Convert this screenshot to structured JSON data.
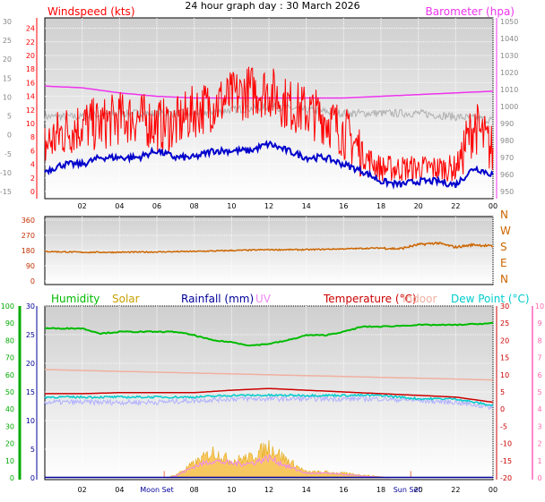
{
  "title": "24 hour graph day : 30 March 2026",
  "colors": {
    "windspeed": "#ff0000",
    "wind_avg": "#0000cc",
    "barometer": "#ee33ee",
    "gust_grey": "#b0b0b0",
    "direction": "#cc6600",
    "humidity": "#00bb00",
    "solar": "#c8a000",
    "rainfall": "#000099",
    "uv": "#ee88ee",
    "temperature": "#cc0000",
    "indoor": "#f0b0a0",
    "dewpoint": "#00cccc",
    "axis_left": "#888888",
    "axis_green": "#00aa00",
    "axis_pink": "#ee33ee"
  },
  "chart_data": [
    {
      "type": "line",
      "panel": "wind",
      "legend_left": "Windspeed (kts)",
      "legend_right": "Barometer (hpa)",
      "x_ticks": [
        "02",
        "04",
        "06",
        "08",
        "10",
        "12",
        "14",
        "16",
        "18",
        "20",
        "22",
        "00"
      ],
      "y_left_ticks": [
        0,
        2,
        4,
        6,
        8,
        10,
        12,
        14,
        16,
        18,
        20,
        22,
        24
      ],
      "y_outer_ticks": [
        -15,
        -10,
        -5,
        0,
        5,
        10,
        15,
        20,
        25,
        30
      ],
      "y_right_ticks": [
        950,
        960,
        970,
        980,
        990,
        1000,
        1010,
        1020,
        1030,
        1040,
        1050
      ],
      "ylim_left": [
        0,
        25
      ],
      "ylim_right": [
        950,
        1050
      ],
      "x_range_hours": [
        0,
        24
      ],
      "series": [
        {
          "name": "Windspeed",
          "key": "gust",
          "x": [
            0,
            1,
            2,
            3,
            4,
            5,
            6,
            7,
            8,
            9,
            10,
            11,
            12,
            13,
            14,
            15,
            16,
            17,
            18,
            19,
            20,
            21,
            22,
            23,
            24
          ],
          "values": [
            6,
            8,
            9,
            9,
            10,
            10,
            9,
            9,
            11,
            12,
            13,
            14,
            14,
            12,
            11,
            10,
            8,
            5,
            3,
            3,
            3,
            3,
            3,
            9,
            5
          ]
        },
        {
          "name": "Average",
          "key": "avg",
          "x": [
            0,
            1,
            2,
            3,
            4,
            5,
            6,
            7,
            8,
            9,
            10,
            11,
            12,
            13,
            14,
            15,
            16,
            17,
            18,
            19,
            20,
            21,
            22,
            23,
            24
          ],
          "values": [
            3,
            4,
            4,
            5,
            5,
            5,
            6,
            5,
            5,
            6,
            6,
            6,
            7,
            6,
            5,
            5,
            4,
            3,
            1.5,
            1,
            1.5,
            1.5,
            1,
            3.5,
            2.5
          ]
        },
        {
          "name": "Barometer",
          "key": "baro",
          "x": [
            0,
            2,
            4,
            6,
            8,
            10,
            12,
            14,
            16,
            18,
            20,
            22,
            24
          ],
          "values": [
            1012,
            1011,
            1008,
            1006,
            1005,
            1005,
            1005,
            1005,
            1005,
            1006,
            1007,
            1008,
            1009
          ]
        },
        {
          "name": "",
          "key": "grey",
          "x": [
            0,
            2,
            4,
            6,
            8,
            10,
            12,
            14,
            16,
            18,
            20,
            22,
            24
          ],
          "values": [
            11,
            11,
            11.5,
            11.5,
            11.5,
            12,
            12.5,
            12,
            11.5,
            11.5,
            11.5,
            11,
            10.5
          ]
        }
      ]
    },
    {
      "type": "line",
      "panel": "direction",
      "y_ticks": [
        0,
        90,
        180,
        270,
        360
      ],
      "compass_labels": [
        "N",
        "W",
        "S",
        "E",
        "N"
      ],
      "ylim": [
        0,
        360
      ],
      "series": [
        {
          "name": "Wind direction",
          "x": [
            0,
            2,
            4,
            6,
            8,
            10,
            12,
            14,
            16,
            18,
            19,
            20,
            21,
            22,
            23,
            24
          ],
          "values": [
            175,
            170,
            170,
            172,
            175,
            180,
            185,
            185,
            190,
            195,
            190,
            215,
            225,
            200,
            215,
            205
          ]
        }
      ]
    },
    {
      "type": "line",
      "panel": "climate",
      "legend": [
        "Humidity",
        "Solar",
        "Rainfall (mm)",
        "UV",
        "Temperature (°C)",
        "Indoor",
        "Dew Point (°C)"
      ],
      "x_ticks": [
        "02",
        "04",
        "08",
        "10",
        "12",
        "14",
        "16",
        "18",
        "20",
        "22",
        "00"
      ],
      "markers": [
        "Moon Set",
        "Sun Set"
      ],
      "y_left_ticks": [
        0,
        5,
        10,
        15,
        20,
        25,
        30
      ],
      "y_outer_ticks": [
        0,
        10,
        20,
        30,
        40,
        50,
        60,
        70,
        80,
        90,
        100
      ],
      "y_right_outer_ticks": [
        -20,
        -15,
        -10,
        -5,
        0,
        5,
        10,
        15,
        20,
        25,
        30
      ],
      "y_right_inner_ticks": [
        0,
        1,
        2,
        3,
        4,
        5,
        6,
        7,
        8,
        9,
        10
      ],
      "ylim_left": [
        0,
        30
      ],
      "ylim_humidity": [
        0,
        100
      ],
      "ylim_temp": [
        -20,
        30
      ],
      "series": [
        {
          "name": "Humidity",
          "key": "hum",
          "x": [
            0,
            2,
            3,
            4,
            5,
            6,
            7,
            8,
            9,
            10,
            11,
            12,
            13,
            14,
            15,
            16,
            17,
            18,
            20,
            22,
            24
          ],
          "values": [
            87,
            87,
            84,
            85,
            85,
            85,
            85,
            83,
            80,
            79,
            77,
            78,
            80,
            83,
            83,
            85,
            88,
            88,
            89,
            89,
            90
          ]
        },
        {
          "name": "Temperature",
          "key": "temp",
          "x": [
            0,
            2,
            4,
            6,
            8,
            10,
            12,
            14,
            16,
            18,
            20,
            22,
            24
          ],
          "values": [
            4.5,
            4.5,
            4.8,
            4.8,
            4.8,
            5.5,
            6.0,
            5.5,
            5.0,
            4.5,
            4.0,
            3.5,
            2.0
          ]
        },
        {
          "name": "Indoor",
          "key": "indoor",
          "x": [
            0,
            4,
            8,
            12,
            16,
            20,
            24
          ],
          "values": [
            11.5,
            11.0,
            10.5,
            10.0,
            9.5,
            9.0,
            8.5
          ]
        },
        {
          "name": "Dew Point",
          "key": "dew",
          "x": [
            0,
            2,
            4,
            6,
            8,
            10,
            12,
            14,
            16,
            18,
            20,
            22,
            24
          ],
          "values": [
            3.5,
            3.5,
            3.5,
            3.5,
            3.5,
            4.0,
            4.0,
            4.0,
            4.0,
            4.0,
            3.0,
            3.0,
            1.0
          ]
        },
        {
          "name": "",
          "key": "lilac",
          "x": [
            0,
            2,
            4,
            6,
            8,
            10,
            12,
            14,
            16,
            18,
            20,
            22,
            24
          ],
          "values": [
            2.0,
            2.0,
            2.0,
            2.0,
            2.5,
            3.0,
            3.0,
            3.0,
            3.0,
            3.0,
            2.5,
            2.0,
            0.5
          ]
        },
        {
          "name": "Solar",
          "key": "solar",
          "x": [
            6.5,
            7,
            8,
            9,
            10,
            11,
            12,
            13,
            14,
            15,
            16,
            17,
            18,
            18.5
          ],
          "values": [
            0,
            0.5,
            2.5,
            4.5,
            3.0,
            3.5,
            5.5,
            3.0,
            1.0,
            1.0,
            0.8,
            0.5,
            0.2,
            0
          ]
        },
        {
          "name": "UV",
          "key": "uv",
          "x": [
            6.5,
            7,
            8,
            9,
            10,
            11,
            12,
            13,
            14,
            15,
            16,
            17,
            18,
            18.5
          ],
          "values": [
            0,
            0.3,
            2.0,
            3.0,
            2.5,
            2.5,
            3.5,
            2.0,
            0.8,
            0.8,
            0.6,
            0.3,
            0.1,
            0
          ]
        },
        {
          "name": "Rainfall",
          "key": "rain",
          "x": [
            0,
            24
          ],
          "values": [
            0,
            0
          ]
        }
      ]
    }
  ]
}
